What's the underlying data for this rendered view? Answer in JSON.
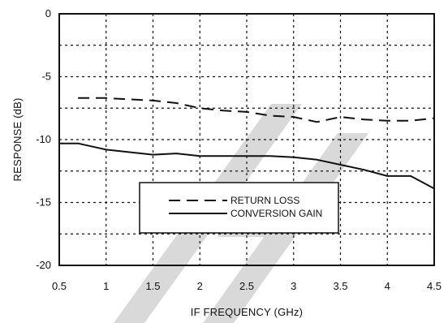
{
  "chart_data": {
    "type": "line",
    "title": "",
    "xlabel": "IF FREQUENCY (GHz)",
    "ylabel": "RESPONSE (dB)",
    "xlim": [
      0.5,
      4.5
    ],
    "ylim": [
      -20,
      0
    ],
    "grid": true,
    "x_ticks": [
      "0.5",
      "1",
      "1.5",
      "2",
      "2.5",
      "3",
      "3.5",
      "4",
      "4.5"
    ],
    "y_ticks": [
      "0",
      "-5",
      "-10",
      "-15",
      "-20"
    ],
    "legend_position": "lower-center",
    "series": [
      {
        "name": "RETURN LOSS",
        "style": "dashed",
        "color": "#111111",
        "points": [
          [
            0.7,
            -6.7
          ],
          [
            1.0,
            -6.7
          ],
          [
            1.25,
            -6.8
          ],
          [
            1.5,
            -6.9
          ],
          [
            1.75,
            -7.1
          ],
          [
            2.0,
            -7.5
          ],
          [
            2.25,
            -7.7
          ],
          [
            2.5,
            -7.8
          ],
          [
            2.75,
            -8.1
          ],
          [
            3.0,
            -8.2
          ],
          [
            3.25,
            -8.6
          ],
          [
            3.5,
            -8.2
          ],
          [
            3.75,
            -8.4
          ],
          [
            4.0,
            -8.5
          ],
          [
            4.25,
            -8.5
          ],
          [
            4.5,
            -8.3
          ]
        ]
      },
      {
        "name": "CONVERSION GAIN",
        "style": "solid",
        "color": "#111111",
        "points": [
          [
            0.5,
            -10.3
          ],
          [
            0.7,
            -10.3
          ],
          [
            1.0,
            -10.8
          ],
          [
            1.25,
            -11.0
          ],
          [
            1.5,
            -11.2
          ],
          [
            1.75,
            -11.1
          ],
          [
            2.0,
            -11.3
          ],
          [
            2.25,
            -11.3
          ],
          [
            2.5,
            -11.3
          ],
          [
            2.75,
            -11.3
          ],
          [
            3.0,
            -11.4
          ],
          [
            3.25,
            -11.6
          ],
          [
            3.5,
            -12.0
          ],
          [
            3.75,
            -12.4
          ],
          [
            4.0,
            -12.9
          ],
          [
            4.25,
            -12.9
          ],
          [
            4.5,
            -13.9
          ]
        ]
      }
    ]
  }
}
